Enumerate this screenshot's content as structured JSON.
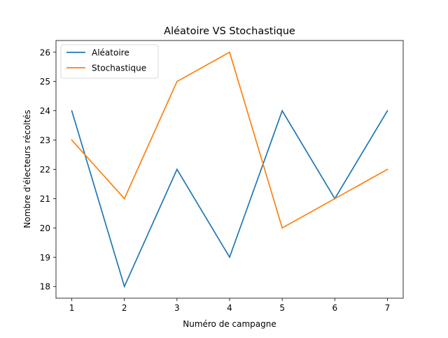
{
  "chart_data": {
    "type": "line",
    "title": "Aléatoire VS Stochastique",
    "xlabel": "Numéro de campagne",
    "ylabel": "Nombre d'électeurs récoltés",
    "x": [
      1,
      2,
      3,
      4,
      5,
      6,
      7
    ],
    "x_ticks": [
      "1",
      "2",
      "3",
      "4",
      "5",
      "6",
      "7"
    ],
    "y_ticks": [
      "18",
      "19",
      "20",
      "21",
      "22",
      "23",
      "24",
      "25",
      "26"
    ],
    "xlim": [
      0.7,
      7.3
    ],
    "ylim": [
      17.6,
      26.4
    ],
    "grid": false,
    "legend_position": "top-left",
    "series": [
      {
        "name": "Aléatoire",
        "color": "#1f77b4",
        "values": [
          24,
          18,
          22,
          19,
          24,
          21,
          24
        ]
      },
      {
        "name": "Stochastique",
        "color": "#ff7f0e",
        "values": [
          23,
          21,
          25,
          26,
          20,
          21,
          22
        ]
      }
    ]
  }
}
